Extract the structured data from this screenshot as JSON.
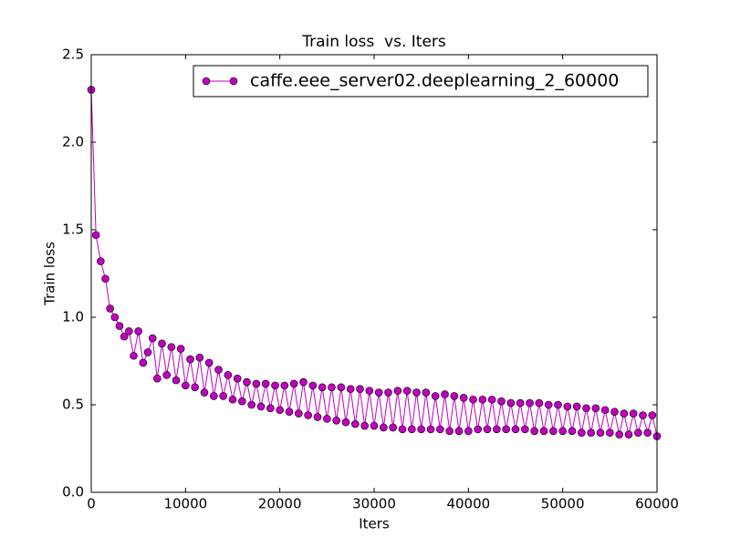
{
  "chart_data": {
    "type": "line",
    "title": "Train loss  vs. Iters",
    "x_label": "Iters",
    "y_label": "Train loss",
    "x": [
      0,
      500,
      1000,
      1500,
      2000,
      2500,
      3000,
      3500,
      4000,
      4500,
      5000,
      5500,
      6000,
      6500,
      7000,
      7500,
      8000,
      8500,
      9000,
      9500,
      10000,
      10500,
      11000,
      11500,
      12000,
      12500,
      13000,
      13500,
      14000,
      14500,
      15000,
      15500,
      16000,
      16500,
      17000,
      17500,
      18000,
      18500,
      19000,
      19500,
      20000,
      20500,
      21000,
      21500,
      22000,
      22500,
      23000,
      23500,
      24000,
      24500,
      25000,
      25500,
      26000,
      26500,
      27000,
      27500,
      28000,
      28500,
      29000,
      29500,
      30000,
      30500,
      31000,
      31500,
      32000,
      32500,
      33000,
      33500,
      34000,
      34500,
      35000,
      35500,
      36000,
      36500,
      37000,
      37500,
      38000,
      38500,
      39000,
      39500,
      40000,
      40500,
      41000,
      41500,
      42000,
      42500,
      43000,
      43500,
      44000,
      44500,
      45000,
      45500,
      46000,
      46500,
      47000,
      47500,
      48000,
      48500,
      49000,
      49500,
      50000,
      50500,
      51000,
      51500,
      52000,
      52500,
      53000,
      53500,
      54000,
      54500,
      55000,
      55500,
      56000,
      56500,
      57000,
      57500,
      58000,
      58500,
      59000,
      59500,
      60000
    ],
    "series": [
      {
        "name": "caffe.eee_server02.deeplearning_2_60000",
        "color": "#bf00bf",
        "values": [
          2.3,
          1.47,
          1.32,
          1.22,
          1.05,
          1.0,
          0.95,
          0.89,
          0.92,
          0.78,
          0.92,
          0.74,
          0.8,
          0.88,
          0.65,
          0.85,
          0.67,
          0.83,
          0.64,
          0.82,
          0.61,
          0.76,
          0.6,
          0.77,
          0.57,
          0.74,
          0.55,
          0.7,
          0.55,
          0.67,
          0.53,
          0.65,
          0.52,
          0.63,
          0.5,
          0.62,
          0.49,
          0.62,
          0.48,
          0.61,
          0.47,
          0.61,
          0.46,
          0.62,
          0.45,
          0.63,
          0.44,
          0.61,
          0.43,
          0.6,
          0.42,
          0.6,
          0.41,
          0.6,
          0.4,
          0.59,
          0.39,
          0.59,
          0.38,
          0.58,
          0.38,
          0.57,
          0.37,
          0.57,
          0.37,
          0.58,
          0.36,
          0.58,
          0.36,
          0.57,
          0.36,
          0.57,
          0.36,
          0.55,
          0.36,
          0.56,
          0.35,
          0.55,
          0.35,
          0.54,
          0.35,
          0.53,
          0.36,
          0.53,
          0.36,
          0.53,
          0.36,
          0.52,
          0.36,
          0.51,
          0.36,
          0.51,
          0.36,
          0.51,
          0.35,
          0.51,
          0.35,
          0.5,
          0.35,
          0.5,
          0.35,
          0.49,
          0.35,
          0.49,
          0.34,
          0.48,
          0.34,
          0.48,
          0.34,
          0.47,
          0.34,
          0.46,
          0.33,
          0.45,
          0.33,
          0.45,
          0.34,
          0.44,
          0.34,
          0.44,
          0.32
        ]
      }
    ],
    "xlim": [
      0,
      60000
    ],
    "xticks": [
      0,
      10000,
      20000,
      30000,
      40000,
      50000,
      60000
    ],
    "ylim": [
      0,
      2.5
    ],
    "yticks": [
      {
        "value": 0,
        "label": "0.0"
      },
      {
        "value": 0.5,
        "label": "0.5"
      },
      {
        "value": 1,
        "label": "1.0"
      },
      {
        "value": 1.5,
        "label": "1.5"
      },
      {
        "value": 2,
        "label": "2.0"
      },
      {
        "value": 2.5,
        "label": "2.5"
      }
    ],
    "legend": "upper right",
    "grid": false
  }
}
